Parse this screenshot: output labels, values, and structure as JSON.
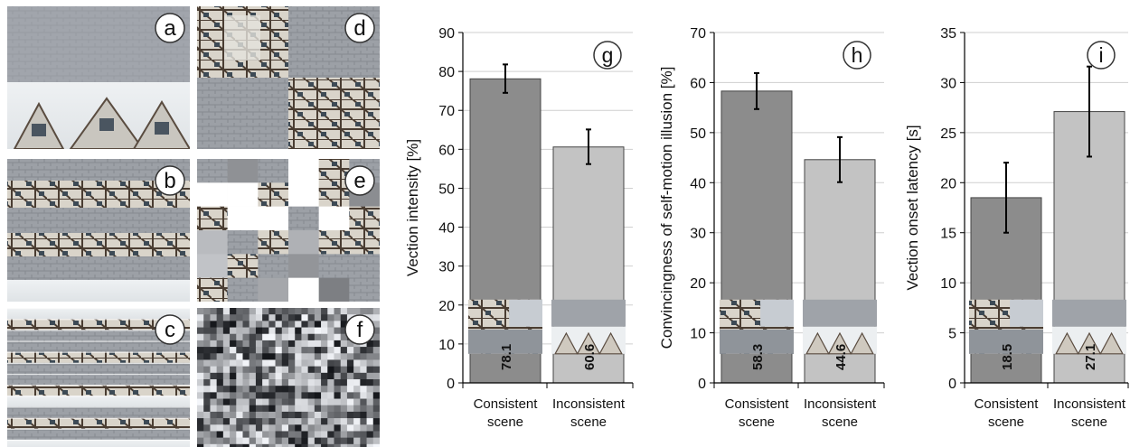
{
  "panels": [
    {
      "label": "a",
      "style": "plaza"
    },
    {
      "label": "d",
      "style": "quad"
    },
    {
      "label": "b",
      "style": "strips3"
    },
    {
      "label": "e",
      "style": "mosaic"
    },
    {
      "label": "c",
      "style": "strips12"
    },
    {
      "label": "f",
      "style": "noise"
    }
  ],
  "thumbnails": {
    "consistent": "street scene",
    "inconsistent": "plaza and house tops"
  },
  "colors": {
    "bar_consistent": "#8c8c8c",
    "bar_inconsistent": "#c3c3c3",
    "gridline": "#cfcfcf",
    "axis": "#000000",
    "error_bar": "#000000"
  },
  "chart_data": [
    {
      "type": "bar",
      "panel_label": "g",
      "title": "",
      "ylabel": "Vection intensity [%]",
      "ylim": [
        0,
        90
      ],
      "yticks": [
        0,
        10,
        20,
        30,
        40,
        50,
        60,
        70,
        80,
        90
      ],
      "grid": true,
      "categories": [
        "Consistent scene",
        "Inconsistent scene"
      ],
      "category_lines": [
        [
          "Consistent",
          "scene"
        ],
        [
          "Inconsistent",
          "scene"
        ]
      ],
      "values": [
        78.1,
        60.6
      ],
      "value_labels": [
        "78.1",
        "60.6"
      ],
      "error_low": [
        74.5,
        56.2
      ],
      "error_high": [
        81.8,
        65.1
      ]
    },
    {
      "type": "bar",
      "panel_label": "h",
      "title": "",
      "ylabel": "Convincingness of self-motion illusion [%]",
      "ylim": [
        0,
        70
      ],
      "yticks": [
        0,
        10,
        20,
        30,
        40,
        50,
        60,
        70
      ],
      "grid": true,
      "categories": [
        "Consistent scene",
        "Inconsistent scene"
      ],
      "category_lines": [
        [
          "Consistent",
          "scene"
        ],
        [
          "Inconsistent",
          "scene"
        ]
      ],
      "values": [
        58.3,
        44.6
      ],
      "value_labels": [
        "58.3",
        "44.6"
      ],
      "error_low": [
        54.7,
        40.1
      ],
      "error_high": [
        61.9,
        49.1
      ]
    },
    {
      "type": "bar",
      "panel_label": "i",
      "title": "",
      "ylabel": "Vection onset latency [s]",
      "ylim": [
        0,
        35
      ],
      "yticks": [
        0,
        5,
        10,
        15,
        20,
        25,
        30,
        35
      ],
      "grid": true,
      "categories": [
        "Consistent scene",
        "Inconsistent scene"
      ],
      "category_lines": [
        [
          "Consistent",
          "scene"
        ],
        [
          "Inconsistent",
          "scene"
        ]
      ],
      "values": [
        18.5,
        27.1
      ],
      "value_labels": [
        "18.5",
        "27.1"
      ],
      "error_low": [
        15.0,
        22.6
      ],
      "error_high": [
        22.0,
        31.6
      ]
    }
  ]
}
